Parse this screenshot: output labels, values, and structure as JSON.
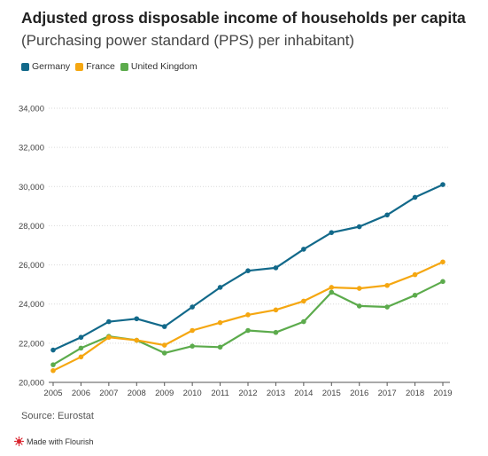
{
  "header": {
    "title": "Adjusted gross disposable income of households per capita",
    "subtitle": "(Purchasing power standard (PPS) per inhabitant)"
  },
  "footer": {
    "source": "Source: Eurostat",
    "flourish_label": "Made with Flourish",
    "flourish_icon": "flourish-logo-icon"
  },
  "chart_data": {
    "type": "line",
    "title": "Adjusted gross disposable income of households per capita",
    "subtitle": "(Purchasing power standard (PPS) per inhabitant)",
    "xlabel": "",
    "ylabel": "",
    "x": [
      2005,
      2006,
      2007,
      2008,
      2009,
      2010,
      2011,
      2012,
      2013,
      2014,
      2015,
      2016,
      2017,
      2018,
      2019
    ],
    "ylim": [
      20000,
      34500
    ],
    "yticks": [
      20000,
      22000,
      24000,
      26000,
      28000,
      30000,
      32000,
      34000
    ],
    "ytick_labels": [
      "20,000",
      "22,000",
      "24,000",
      "26,000",
      "28,000",
      "30,000",
      "32,000",
      "34,000"
    ],
    "grid": "horizontal",
    "legend_position": "top-left",
    "series": [
      {
        "name": "Germany",
        "color": "#12698a",
        "values": [
          21650,
          22300,
          23100,
          23250,
          22850,
          23850,
          24850,
          25700,
          25850,
          26800,
          27650,
          27950,
          28550,
          29450,
          30100
        ]
      },
      {
        "name": "France",
        "color": "#f5a711",
        "values": [
          20600,
          21300,
          22300,
          22150,
          21900,
          22650,
          23050,
          23450,
          23700,
          24150,
          24850,
          24800,
          24950,
          25500,
          26150
        ]
      },
      {
        "name": "United Kingdom",
        "color": "#5cab4c",
        "values": [
          20900,
          21750,
          22350,
          22150,
          21500,
          21850,
          21800,
          22650,
          22550,
          23100,
          24600,
          23900,
          23850,
          24450,
          25150
        ]
      }
    ]
  }
}
